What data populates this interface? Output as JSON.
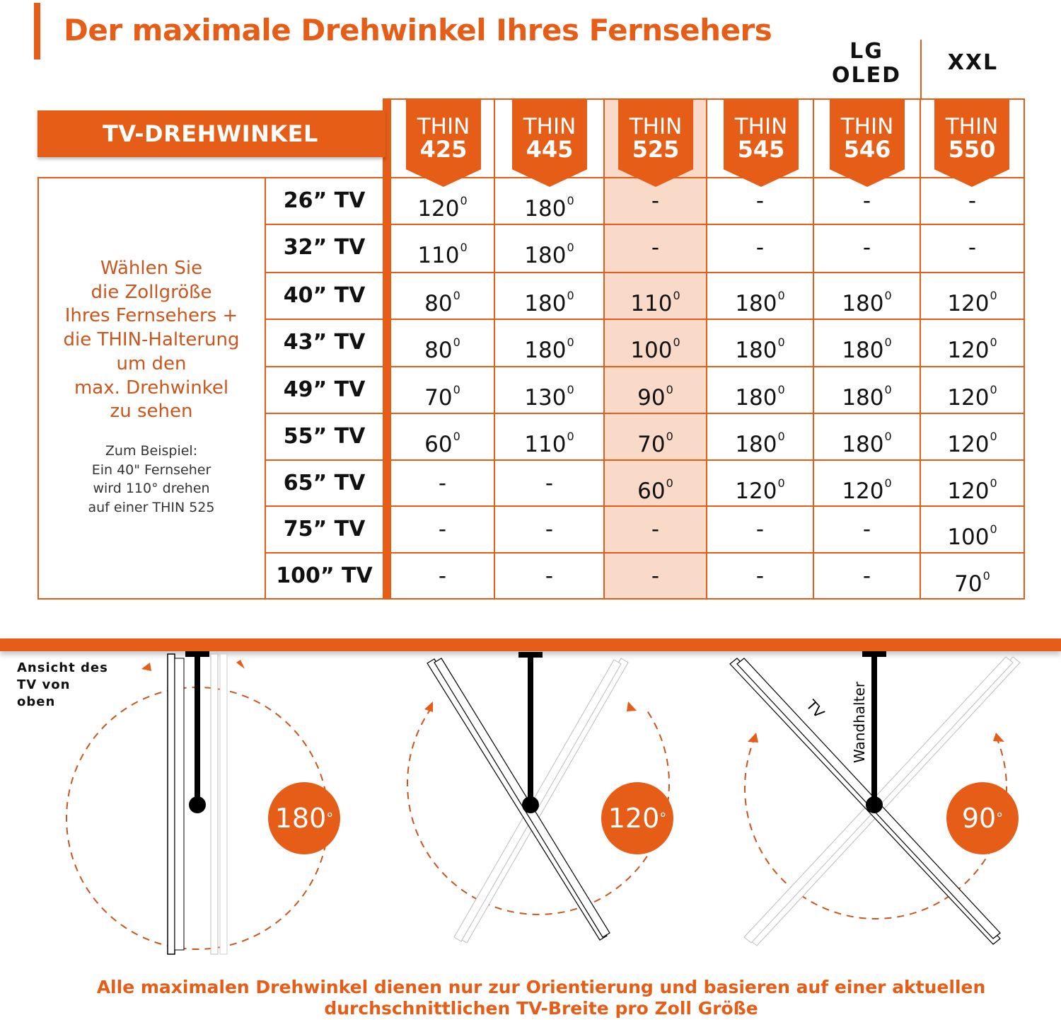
{
  "title": "Der maximale Drehwinkel Ihres Fernsehers",
  "header": {
    "row_header_label": "TV-DREHWINKEL",
    "group_labels": [
      {
        "label_line1": "LG",
        "label_line2": "OLED",
        "over_column": "THIN 546"
      },
      {
        "label_line1": "XXL",
        "label_line2": "",
        "over_column": "THIN 550"
      }
    ],
    "columns": [
      {
        "line1": "THIN",
        "line2": "425",
        "highlighted": false
      },
      {
        "line1": "THIN",
        "line2": "445",
        "highlighted": false
      },
      {
        "line1": "THIN",
        "line2": "525",
        "highlighted": true
      },
      {
        "line1": "THIN",
        "line2": "545",
        "highlighted": false
      },
      {
        "line1": "THIN",
        "line2": "546",
        "highlighted": false
      },
      {
        "line1": "THIN",
        "line2": "550",
        "highlighted": false
      }
    ]
  },
  "instructions": {
    "lines": [
      "Wählen Sie",
      "die Zollgröße",
      "Ihres Fernsehers +",
      "die THIN-Halterung",
      "um den",
      "max. Drehwinkel",
      "zu sehen"
    ],
    "example_lines": [
      "Zum Beispiel:",
      "Ein 40\" Fernseher",
      "wird 110° drehen",
      "auf einer THIN 525"
    ]
  },
  "rows": [
    {
      "size": "26” TV",
      "values": [
        "120",
        "180",
        "-",
        "-",
        "-",
        "-"
      ]
    },
    {
      "size": "32” TV",
      "values": [
        "110",
        "180",
        "-",
        "-",
        "-",
        "-"
      ]
    },
    {
      "size": "40” TV",
      "values": [
        "80",
        "180",
        "110",
        "180",
        "180",
        "120"
      ]
    },
    {
      "size": "43” TV",
      "values": [
        "80",
        "180",
        "100",
        "180",
        "180",
        "120"
      ]
    },
    {
      "size": "49” TV",
      "values": [
        "70",
        "130",
        "90",
        "180",
        "180",
        "120"
      ]
    },
    {
      "size": "55” TV",
      "values": [
        "60",
        "110",
        "70",
        "180",
        "180",
        "120"
      ]
    },
    {
      "size": "65” TV",
      "values": [
        "-",
        "-",
        "60",
        "120",
        "120",
        "120"
      ]
    },
    {
      "size": "75” TV",
      "values": [
        "-",
        "-",
        "-",
        "-",
        "-",
        "100"
      ]
    },
    {
      "size": "100” TV",
      "values": [
        "-",
        "-",
        "-",
        "-",
        "-",
        "70"
      ]
    }
  ],
  "degree_symbol": "0",
  "diagrams": {
    "view_label_lines": [
      "Ansicht des",
      "TV von",
      "oben"
    ],
    "items": [
      {
        "angle": "180",
        "degree": "°"
      },
      {
        "angle": "120",
        "degree": "°"
      },
      {
        "angle": "90",
        "degree": "°",
        "label_tv": "TV",
        "label_mount": "Wandhalter"
      }
    ]
  },
  "footer": {
    "line1": "Alle maximalen Drehwinkel dienen nur zur Orientierung und basieren auf einer aktuellen",
    "line2": "durchschnittlichen TV-Breite pro Zoll Größe"
  },
  "colors": {
    "accent": "#e55d16",
    "highlight_column": "#f9d9c8",
    "instruction_text": "#c9561d"
  },
  "chart_data": {
    "type": "table",
    "title": "Der maximale Drehwinkel Ihres Fernsehers",
    "row_header": "TV-DREHWINKEL",
    "columns": [
      "THIN 425",
      "THIN 445",
      "THIN 525",
      "THIN 545",
      "THIN 546",
      "THIN 550"
    ],
    "column_groups": {
      "LG OLED": [
        "THIN 546"
      ],
      "XXL": [
        "THIN 550"
      ]
    },
    "highlighted_column": "THIN 525",
    "unit": "degrees",
    "rows": [
      "26\" TV",
      "32\" TV",
      "40\" TV",
      "43\" TV",
      "49\" TV",
      "55\" TV",
      "65\" TV",
      "75\" TV",
      "100\" TV"
    ],
    "values": [
      [
        120,
        180,
        null,
        null,
        null,
        null
      ],
      [
        110,
        180,
        null,
        null,
        null,
        null
      ],
      [
        80,
        180,
        110,
        180,
        180,
        120
      ],
      [
        80,
        180,
        100,
        180,
        180,
        120
      ],
      [
        70,
        130,
        90,
        180,
        180,
        120
      ],
      [
        60,
        110,
        70,
        180,
        180,
        120
      ],
      [
        null,
        null,
        60,
        120,
        120,
        120
      ],
      [
        null,
        null,
        null,
        null,
        null,
        100
      ],
      [
        null,
        null,
        null,
        null,
        null,
        70
      ]
    ],
    "illustrations": [
      "180°",
      "120°",
      "90°"
    ]
  }
}
